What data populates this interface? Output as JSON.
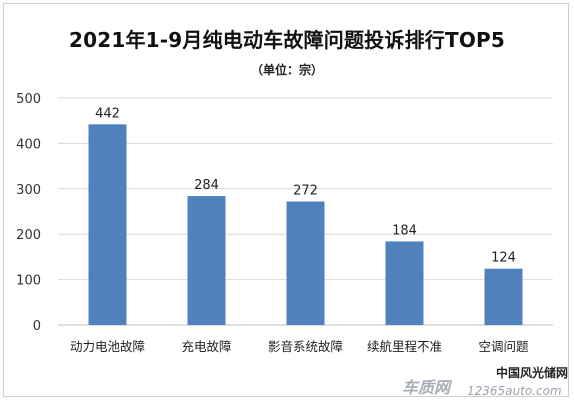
{
  "chart_data": {
    "type": "bar",
    "title": "2021年1-9月纯电动车故障问题投诉排行TOP5",
    "subtitle": "（单位：宗）",
    "categories": [
      "动力电池故障",
      "充电故障",
      "影音系统故障",
      "续航里程不准",
      "空调问题"
    ],
    "values": [
      442,
      284,
      272,
      184,
      124
    ],
    "data_labels": [
      "442",
      "284",
      "272",
      "184",
      "124"
    ],
    "yticks": [
      "0",
      "100",
      "200",
      "300",
      "400",
      "500"
    ],
    "ylim": [
      0,
      500
    ],
    "grid": true,
    "xlabel": "",
    "ylabel": "",
    "bar_color": "#4f81bd"
  },
  "watermark": {
    "top": "中国风光储网",
    "logo": "车质网",
    "url": "12365auto.com"
  }
}
